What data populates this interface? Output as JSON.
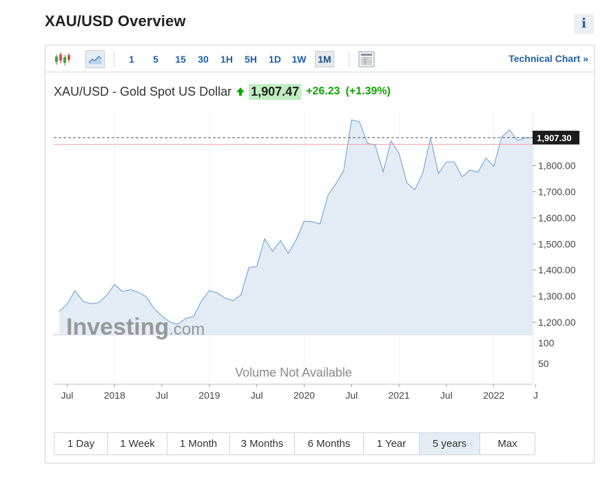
{
  "page": {
    "title": "XAU/USD Overview",
    "info_label": "i"
  },
  "toolbar": {
    "timeframes": [
      {
        "label": "1"
      },
      {
        "label": "5"
      },
      {
        "label": "15"
      },
      {
        "label": "30"
      },
      {
        "label": "1H"
      },
      {
        "label": "5H"
      },
      {
        "label": "1D"
      },
      {
        "label": "1W"
      },
      {
        "label": "1M",
        "active": true
      }
    ],
    "technical_chart_label": "Technical Chart",
    "technical_chart_chevron": "»",
    "icons": [
      "candlestick-icon",
      "line-chart-icon",
      "table-icon"
    ]
  },
  "quote": {
    "name": "XAU/USD - Gold Spot US Dollar",
    "last": "1,907.47",
    "change": "+26.23",
    "change_pct": "(+1.39%)",
    "direction": "up",
    "up_color": "#0ea600"
  },
  "chart_data": {
    "type": "area",
    "current_price_label": "1,907.30",
    "current_price": 1907.3,
    "reference_line": 1881.24,
    "ylim": [
      1150,
      1950
    ],
    "y_ticks": [
      {
        "value": 1800,
        "label": "1,800.00"
      },
      {
        "value": 1700,
        "label": "1,700.00"
      },
      {
        "value": 1600,
        "label": "1,600.00"
      },
      {
        "value": 1500,
        "label": "1,500.00"
      },
      {
        "value": 1400,
        "label": "1,400.00"
      },
      {
        "value": 1300,
        "label": "1,300.00"
      },
      {
        "value": 1200,
        "label": "1,200.00"
      }
    ],
    "volume_ticks": [
      {
        "value": 100,
        "label": "100"
      },
      {
        "value": 50,
        "label": "50"
      }
    ],
    "volume_message": "Volume Not Available",
    "watermark": "Investing.com",
    "x_labels": [
      {
        "index": 1,
        "label": "Jul"
      },
      {
        "index": 7,
        "label": "2018"
      },
      {
        "index": 13,
        "label": "Jul"
      },
      {
        "index": 19,
        "label": "2019"
      },
      {
        "index": 25,
        "label": "Jul"
      },
      {
        "index": 31,
        "label": "2020"
      },
      {
        "index": 37,
        "label": "Jul"
      },
      {
        "index": 43,
        "label": "2021"
      },
      {
        "index": 49,
        "label": "Jul"
      },
      {
        "index": 55,
        "label": "2022"
      },
      {
        "index": 60.3,
        "label": "J"
      }
    ],
    "x": [
      "2017-06",
      "2017-07",
      "2017-08",
      "2017-09",
      "2017-10",
      "2017-11",
      "2017-12",
      "2018-01",
      "2018-02",
      "2018-03",
      "2018-04",
      "2018-05",
      "2018-06",
      "2018-07",
      "2018-08",
      "2018-09",
      "2018-10",
      "2018-11",
      "2018-12",
      "2019-01",
      "2019-02",
      "2019-03",
      "2019-04",
      "2019-05",
      "2019-06",
      "2019-07",
      "2019-08",
      "2019-09",
      "2019-10",
      "2019-11",
      "2019-12",
      "2020-01",
      "2020-02",
      "2020-03",
      "2020-04",
      "2020-05",
      "2020-06",
      "2020-07",
      "2020-08",
      "2020-09",
      "2020-10",
      "2020-11",
      "2020-12",
      "2021-01",
      "2021-02",
      "2021-03",
      "2021-04",
      "2021-05",
      "2021-06",
      "2021-07",
      "2021-08",
      "2021-09",
      "2021-10",
      "2021-11",
      "2021-12",
      "2022-01",
      "2022-02",
      "2022-03",
      "2022-04",
      "2022-05",
      "2022-06"
    ],
    "values": [
      1242,
      1269,
      1322,
      1280,
      1271,
      1275,
      1303,
      1345,
      1318,
      1325,
      1315,
      1298,
      1253,
      1224,
      1201,
      1192,
      1215,
      1222,
      1282,
      1321,
      1313,
      1292,
      1283,
      1305,
      1409,
      1414,
      1520,
      1472,
      1513,
      1464,
      1517,
      1587,
      1585,
      1577,
      1686,
      1730,
      1781,
      1975,
      1968,
      1886,
      1878,
      1776,
      1895,
      1847,
      1734,
      1708,
      1769,
      1906,
      1770,
      1814,
      1814,
      1757,
      1783,
      1775,
      1829,
      1797,
      1909,
      1937,
      1896,
      1907,
      1907
    ]
  },
  "range": {
    "options": [
      {
        "label": "1 Day"
      },
      {
        "label": "1 Week"
      },
      {
        "label": "1 Month"
      },
      {
        "label": "3 Months"
      },
      {
        "label": "6 Months"
      },
      {
        "label": "1 Year"
      },
      {
        "label": "5 years",
        "active": true
      },
      {
        "label": "Max"
      }
    ]
  }
}
